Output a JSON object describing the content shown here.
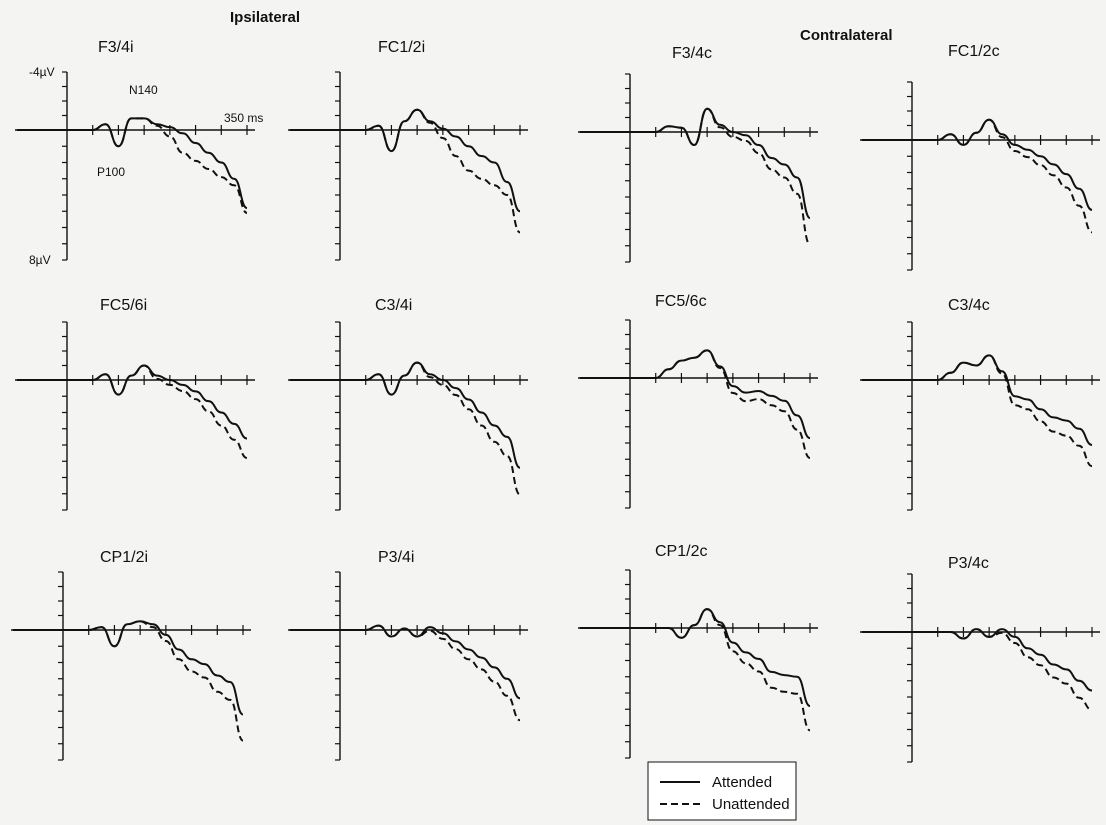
{
  "chart_data": {
    "type": "line",
    "x_unit": "ms",
    "x": [
      0,
      25,
      50,
      75,
      100,
      125,
      150,
      175,
      200,
      225,
      250,
      275,
      300,
      325,
      350
    ],
    "ylim": [
      -4,
      8
    ],
    "y_inverted": true,
    "group_labels": {
      "left": "Ipsilateral",
      "right": "Contralateral"
    },
    "y_top_label": "-4µV",
    "y_bottom_label": "8µV",
    "x_end_label": "350 ms",
    "peak_labels": {
      "negative": "N140",
      "positive": "P100"
    },
    "legend": {
      "attended": "Attended",
      "unattended": "Unattended"
    },
    "panels": [
      {
        "title": "F3/4i",
        "attended": [
          0,
          0,
          0,
          -0.4,
          1.0,
          -0.8,
          -0.8,
          -0.4,
          -0.2,
          0.2,
          0.8,
          1.4,
          2.0,
          3.0,
          4.8
        ],
        "unattended": [
          0,
          0,
          0,
          -0.4,
          1.0,
          -0.8,
          -0.8,
          -0.3,
          0.4,
          1.4,
          1.9,
          2.4,
          2.9,
          3.4,
          5.1
        ]
      },
      {
        "title": "FC1/2i",
        "attended": [
          0,
          0,
          0,
          -0.3,
          1.3,
          -0.6,
          -1.4,
          -0.6,
          -0.1,
          0.4,
          1.0,
          1.6,
          2.0,
          3.2,
          5.0
        ],
        "unattended": [
          0,
          0,
          0,
          -0.3,
          1.3,
          -0.6,
          -1.4,
          -0.5,
          0.5,
          1.6,
          2.5,
          3.0,
          3.4,
          4.0,
          6.3
        ]
      },
      {
        "title": "F3/4c",
        "attended": [
          0,
          0,
          0,
          -0.4,
          -0.3,
          0.8,
          -1.6,
          -0.5,
          0.0,
          0.2,
          0.8,
          1.6,
          2.0,
          2.8,
          5.3
        ]
      },
      {
        "title": "FC1/2c",
        "attended": [
          0,
          0,
          0,
          -0.4,
          0.3,
          -0.5,
          -1.4,
          -0.4,
          0.3,
          0.6,
          1.0,
          1.5,
          2.1,
          3.0,
          4.3
        ]
      },
      {
        "title": "FC5/6i",
        "attended": [
          0,
          0,
          0,
          -0.4,
          0.9,
          -0.3,
          -1.0,
          -0.3,
          0.0,
          0.3,
          0.7,
          1.3,
          2.0,
          2.7,
          3.6
        ]
      },
      {
        "title": "C3/4i",
        "attended": [
          0,
          0,
          0,
          -0.4,
          0.9,
          -0.3,
          -1.2,
          -0.4,
          0.0,
          0.5,
          1.2,
          2.0,
          2.8,
          3.5,
          5.4
        ]
      },
      {
        "title": "FC5/6c",
        "attended": [
          0,
          0,
          0,
          -0.6,
          -1.2,
          -1.4,
          -1.9,
          -0.8,
          0.5,
          0.9,
          0.8,
          1.1,
          1.4,
          2.3,
          3.7
        ]
      },
      {
        "title": "C3/4c",
        "attended": [
          0,
          0,
          0,
          -0.5,
          -1.2,
          -1.0,
          -1.7,
          -0.6,
          1.0,
          1.2,
          1.8,
          2.3,
          2.5,
          3.0,
          4.0
        ]
      },
      {
        "title": "CP1/2i",
        "attended": [
          0,
          0,
          0,
          -0.2,
          1.0,
          -0.4,
          -0.6,
          -0.4,
          0.3,
          1.2,
          1.8,
          2.1,
          2.8,
          3.2,
          5.2
        ]
      },
      {
        "title": "P3/4i",
        "attended": [
          0,
          0,
          0,
          -0.3,
          0.4,
          -0.1,
          0.4,
          -0.2,
          0.2,
          0.7,
          1.2,
          1.7,
          2.3,
          3.0,
          4.2
        ]
      },
      {
        "title": "CP1/2c",
        "attended": [
          0,
          0,
          0,
          0.0,
          0.6,
          -0.2,
          -1.3,
          -0.4,
          0.9,
          1.5,
          1.9,
          2.7,
          2.9,
          3.0,
          4.8
        ]
      },
      {
        "title": "P3/4c",
        "attended": [
          0,
          0,
          0,
          0.0,
          0.4,
          -0.2,
          0.3,
          -0.2,
          0.3,
          1.0,
          1.4,
          2.0,
          2.3,
          3.0,
          3.6
        ]
      }
    ]
  }
}
